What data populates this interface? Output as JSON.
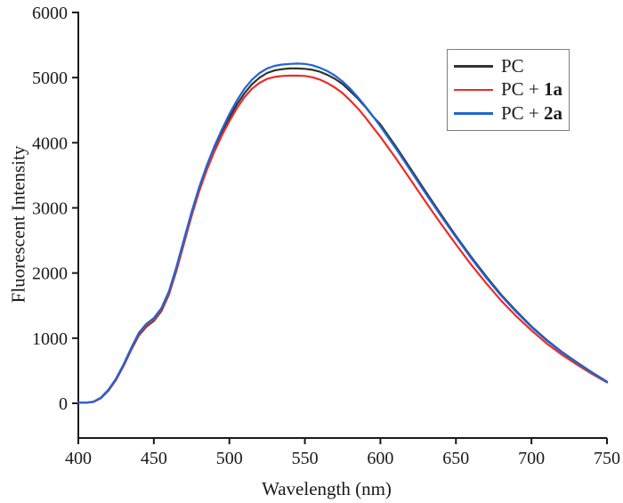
{
  "figure": {
    "background": "#ffffff",
    "axis_color": "#1a1a1a"
  },
  "chart_data": {
    "type": "line",
    "title": "",
    "xlabel": "Wavelength (nm)",
    "ylabel": "Fluorescent Intensity",
    "xlim": [
      400,
      750
    ],
    "ylim": [
      0,
      6000
    ],
    "x_ticks": [
      400,
      450,
      500,
      550,
      600,
      650,
      700,
      750
    ],
    "y_ticks": [
      0,
      1000,
      2000,
      3000,
      4000,
      5000,
      6000
    ],
    "grid": false,
    "legend_position": "upper-right-inside",
    "axis_color": "#1a1a1a",
    "x": [
      400,
      405,
      410,
      415,
      420,
      425,
      430,
      435,
      440,
      445,
      450,
      455,
      460,
      465,
      470,
      475,
      480,
      485,
      490,
      495,
      500,
      505,
      510,
      515,
      520,
      525,
      530,
      535,
      540,
      545,
      550,
      555,
      560,
      565,
      570,
      575,
      580,
      585,
      590,
      595,
      600,
      610,
      620,
      630,
      640,
      650,
      660,
      670,
      680,
      690,
      700,
      710,
      720,
      730,
      740,
      750
    ],
    "series": [
      {
        "name": "PC",
        "label_prefix": "PC",
        "label_bold": "",
        "color": "#333333",
        "values": [
          10,
          10,
          20,
          80,
          195,
          360,
          575,
          820,
          1040,
          1175,
          1265,
          1415,
          1670,
          2040,
          2460,
          2880,
          3260,
          3590,
          3880,
          4140,
          4380,
          4590,
          4760,
          4900,
          5000,
          5070,
          5110,
          5130,
          5140,
          5140,
          5135,
          5120,
          5090,
          5040,
          4980,
          4900,
          4790,
          4680,
          4550,
          4405,
          4280,
          3950,
          3600,
          3250,
          2905,
          2570,
          2250,
          1950,
          1665,
          1415,
          1180,
          975,
          792,
          630,
          475,
          332
        ]
      },
      {
        "name": "PC + 1a",
        "label_prefix": "PC + ",
        "label_bold": "1a",
        "color": "#ec2c28",
        "values": [
          10,
          10,
          22,
          85,
          200,
          365,
          585,
          830,
          1055,
          1190,
          1280,
          1430,
          1685,
          2055,
          2470,
          2890,
          3260,
          3580,
          3860,
          4110,
          4330,
          4530,
          4700,
          4830,
          4920,
          4980,
          5010,
          5025,
          5030,
          5030,
          5025,
          5005,
          4970,
          4915,
          4845,
          4760,
          4650,
          4530,
          4390,
          4240,
          4090,
          3770,
          3430,
          3090,
          2760,
          2440,
          2130,
          1845,
          1575,
          1335,
          1120,
          920,
          748,
          595,
          452,
          320
        ]
      },
      {
        "name": "PC + 2a",
        "label_prefix": "PC + ",
        "label_bold": "2a",
        "color": "#2064d4",
        "values": [
          10,
          10,
          25,
          90,
          210,
          380,
          600,
          850,
          1080,
          1220,
          1310,
          1460,
          1720,
          2100,
          2520,
          2940,
          3320,
          3650,
          3940,
          4200,
          4440,
          4650,
          4830,
          4970,
          5070,
          5140,
          5180,
          5200,
          5210,
          5215,
          5210,
          5190,
          5150,
          5100,
          5030,
          4940,
          4830,
          4700,
          4560,
          4410,
          4250,
          3920,
          3570,
          3220,
          2880,
          2550,
          2230,
          1930,
          1650,
          1400,
          1170,
          965,
          785,
          625,
          470,
          330
        ]
      }
    ]
  }
}
